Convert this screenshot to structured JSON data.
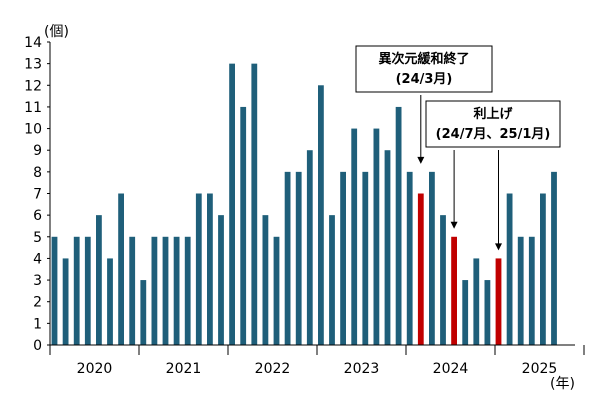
{
  "chart_data": {
    "type": "bar",
    "ylabel": "(個)",
    "xunit": "(年)",
    "ylim": [
      0,
      14
    ],
    "yticks": [
      0,
      1,
      2,
      3,
      4,
      5,
      6,
      7,
      8,
      9,
      10,
      11,
      12,
      13,
      14
    ],
    "grid": false,
    "years": [
      "2020",
      "2021",
      "2022",
      "2023",
      "2024",
      "2025"
    ],
    "values": [
      5,
      4,
      5,
      5,
      6,
      4,
      7,
      5,
      3,
      5,
      5,
      5,
      5,
      7,
      7,
      6,
      13,
      11,
      13,
      6,
      5,
      8,
      8,
      9,
      12,
      6,
      8,
      10,
      8,
      10,
      9,
      11,
      8,
      7,
      8,
      6,
      5,
      3,
      4,
      3,
      4,
      7,
      5,
      5,
      7,
      8
    ],
    "highlight_indices": [
      33,
      36,
      40
    ],
    "colors": {
      "bar": "#1f5f7a",
      "highlight": "#c00000",
      "axis": "#000000"
    },
    "annotations": [
      {
        "lines": [
          "異次元緩和終了",
          "(24/3月)"
        ]
      },
      {
        "lines": [
          "利上げ",
          "(24/7月、25/1月)"
        ]
      }
    ]
  }
}
